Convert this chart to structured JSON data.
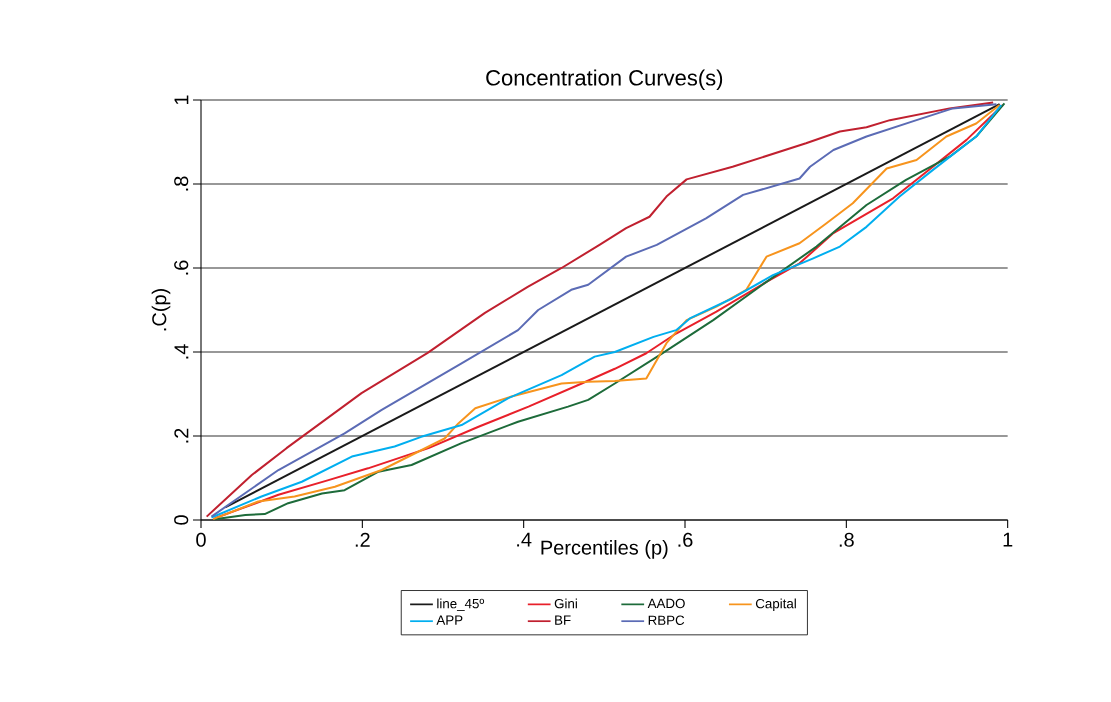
{
  "chart_data": {
    "type": "line",
    "title": "Concentration Curves(s)",
    "xlabel": "Percentiles (p)",
    "ylabel": ".C(p)",
    "xlim": [
      0,
      1
    ],
    "ylim": [
      0,
      1
    ],
    "xticks": [
      0,
      {
        "value": 0.2,
        "label": ".2"
      },
      {
        "value": 0.4,
        "label": ".4"
      },
      {
        "value": 0.6,
        "label": ".6"
      },
      {
        "value": 0.8,
        "label": ".8"
      },
      1
    ],
    "yticks": [
      0,
      {
        "value": 0.2,
        "label": ".2"
      },
      {
        "value": 0.4,
        "label": ".4"
      },
      {
        "value": 0.6,
        "label": ".6"
      },
      {
        "value": 0.8,
        "label": ".8"
      },
      1
    ],
    "grid": "y",
    "legend": "bottom",
    "marker": "none",
    "line_style": "solid",
    "series": [
      {
        "name": "line_45º",
        "color": "#1a1a1a",
        "x": [
          0.03,
          0.99
        ],
        "values": [
          0.03,
          0.99
        ]
      },
      {
        "name": "Gini",
        "color": "#e8202a",
        "x": [
          0.017,
          0.096,
          0.158,
          0.207,
          0.282,
          0.344,
          0.406,
          0.472,
          0.513,
          0.552,
          0.589,
          0.639,
          0.701,
          0.742,
          0.784,
          0.858,
          0.887,
          0.949,
          0.994
        ],
        "values": [
          0.004,
          0.06,
          0.095,
          0.123,
          0.171,
          0.222,
          0.27,
          0.325,
          0.36,
          0.397,
          0.444,
          0.496,
          0.567,
          0.611,
          0.683,
          0.766,
          0.81,
          0.905,
          0.988
        ]
      },
      {
        "name": "AADO",
        "color": "#1d6b3a",
        "x": [
          0.017,
          0.055,
          0.079,
          0.108,
          0.15,
          0.178,
          0.22,
          0.261,
          0.323,
          0.393,
          0.455,
          0.48,
          0.513,
          0.569,
          0.635,
          0.701,
          0.763,
          0.825,
          0.874,
          0.928,
          0.961,
          0.996
        ],
        "values": [
          0.002,
          0.012,
          0.014,
          0.04,
          0.063,
          0.071,
          0.115,
          0.131,
          0.183,
          0.234,
          0.27,
          0.286,
          0.325,
          0.393,
          0.476,
          0.567,
          0.651,
          0.75,
          0.81,
          0.865,
          0.913,
          0.992
        ]
      },
      {
        "name": "Capital",
        "color": "#f7941d",
        "x": [
          0.015,
          0.071,
          0.116,
          0.166,
          0.224,
          0.302,
          0.319,
          0.34,
          0.385,
          0.447,
          0.48,
          0.513,
          0.552,
          0.577,
          0.602,
          0.639,
          0.676,
          0.701,
          0.742,
          0.775,
          0.808,
          0.85,
          0.887,
          0.924,
          0.961,
          0.99
        ],
        "values": [
          0.002,
          0.044,
          0.056,
          0.079,
          0.119,
          0.194,
          0.23,
          0.266,
          0.294,
          0.325,
          0.329,
          0.331,
          0.337,
          0.421,
          0.476,
          0.508,
          0.548,
          0.627,
          0.659,
          0.706,
          0.754,
          0.837,
          0.857,
          0.913,
          0.944,
          0.988
        ]
      },
      {
        "name": "APP",
        "color": "#00aeef",
        "x": [
          0.013,
          0.075,
          0.125,
          0.187,
          0.24,
          0.273,
          0.323,
          0.381,
          0.447,
          0.488,
          0.513,
          0.561,
          0.589,
          0.606,
          0.659,
          0.709,
          0.759,
          0.792,
          0.825,
          0.866,
          0.907,
          0.961,
          0.992
        ],
        "values": [
          0.006,
          0.056,
          0.091,
          0.151,
          0.175,
          0.198,
          0.226,
          0.29,
          0.345,
          0.389,
          0.4,
          0.436,
          0.452,
          0.48,
          0.528,
          0.583,
          0.623,
          0.651,
          0.698,
          0.77,
          0.833,
          0.913,
          0.988
        ]
      },
      {
        "name": "BF",
        "color": "#c0202f",
        "x": [
          0.007,
          0.063,
          0.106,
          0.199,
          0.281,
          0.352,
          0.405,
          0.447,
          0.494,
          0.527,
          0.556,
          0.577,
          0.602,
          0.659,
          0.75,
          0.792,
          0.825,
          0.854,
          0.928,
          0.982
        ],
        "values": [
          0.008,
          0.107,
          0.171,
          0.302,
          0.398,
          0.493,
          0.555,
          0.6,
          0.655,
          0.695,
          0.722,
          0.77,
          0.811,
          0.841,
          0.897,
          0.925,
          0.935,
          0.952,
          0.98,
          0.994
        ]
      },
      {
        "name": "RBPC",
        "color": "#5b6bb5",
        "x": [
          0.013,
          0.096,
          0.178,
          0.224,
          0.323,
          0.393,
          0.418,
          0.459,
          0.48,
          0.527,
          0.565,
          0.626,
          0.672,
          0.742,
          0.755,
          0.784,
          0.825,
          0.887,
          0.932,
          0.986
        ],
        "values": [
          0.008,
          0.119,
          0.206,
          0.262,
          0.373,
          0.452,
          0.5,
          0.548,
          0.56,
          0.627,
          0.655,
          0.718,
          0.774,
          0.813,
          0.841,
          0.881,
          0.913,
          0.952,
          0.98,
          0.99
        ]
      }
    ]
  }
}
